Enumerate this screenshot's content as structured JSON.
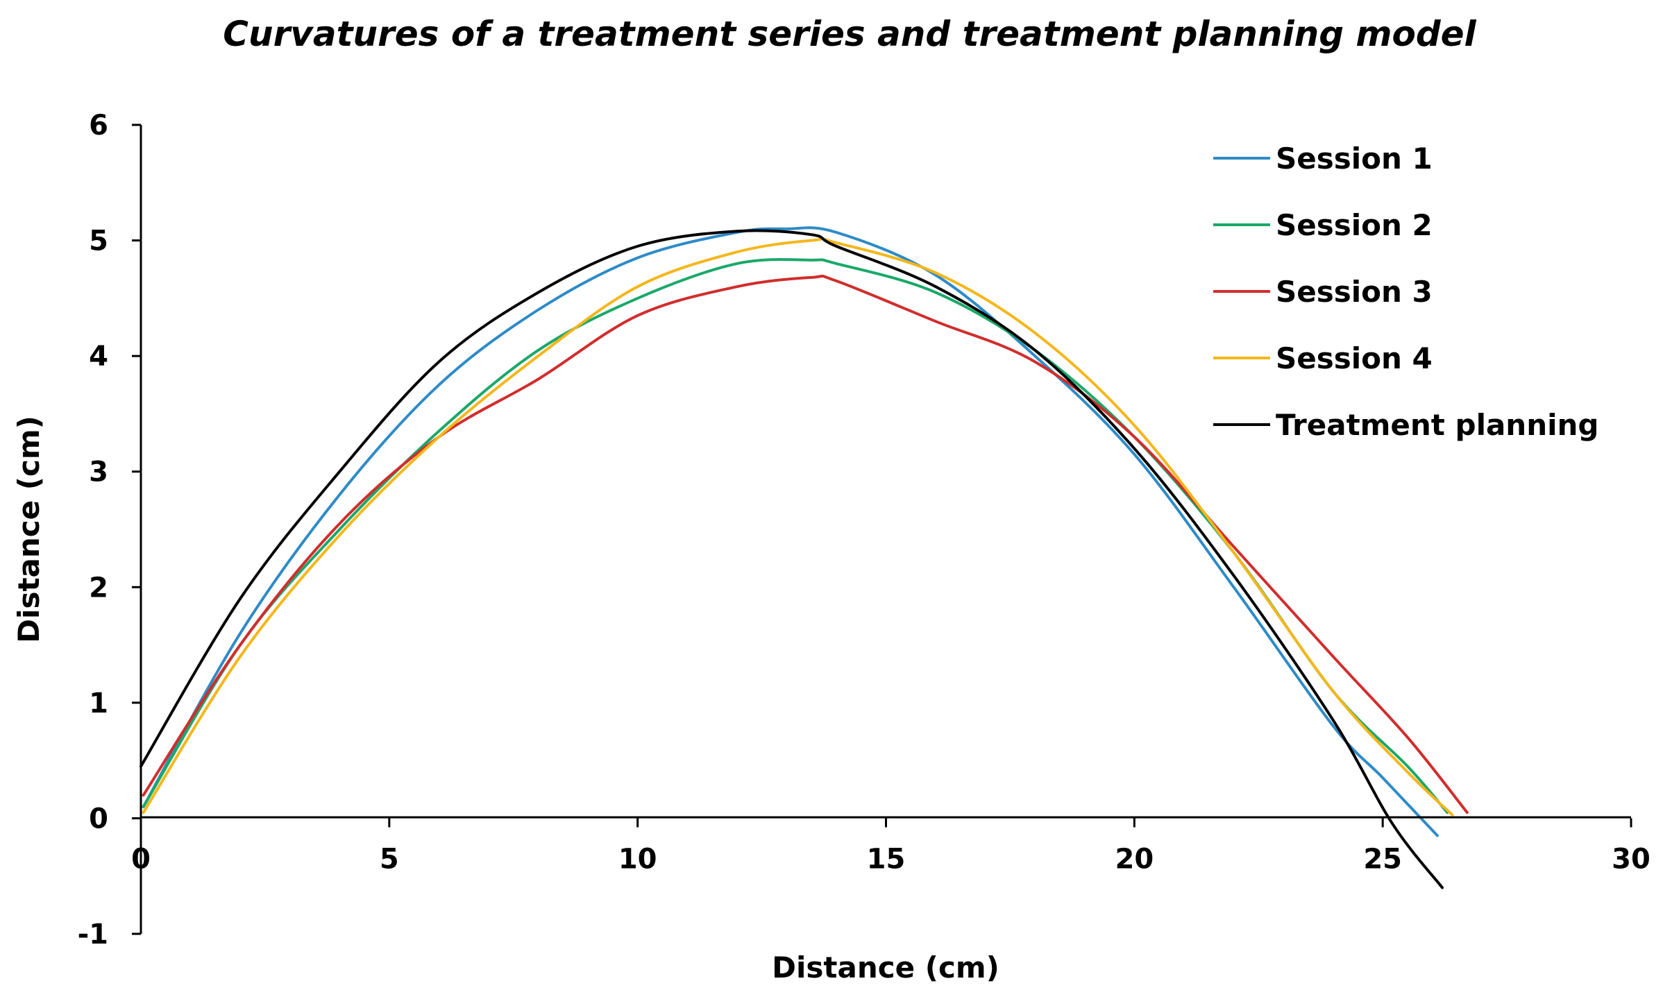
{
  "chart_data": {
    "type": "line",
    "title": "Curvatures of a treatment series and treatment planning model",
    "xlabel": "Distance (cm)",
    "ylabel": "Distance (cm)",
    "xlim": [
      0,
      30
    ],
    "ylim": [
      -1,
      6
    ],
    "x_ticks": [
      0,
      5,
      10,
      15,
      20,
      25,
      30
    ],
    "x_tick_labels": [
      "0",
      "5",
      "10",
      "15",
      "20",
      "25",
      "30"
    ],
    "y_ticks": [
      -1,
      0,
      1,
      2,
      3,
      4,
      5,
      6
    ],
    "y_tick_labels": [
      "-1",
      "0",
      "1",
      "2",
      "3",
      "4",
      "5",
      "6"
    ],
    "grid": false,
    "legend_position": "top-right",
    "series": [
      {
        "name": "Session 1",
        "color": "#2E8BC7",
        "x": [
          0.05,
          2,
          4,
          6,
          8,
          10,
          12,
          13,
          14,
          16,
          18,
          20,
          22,
          24,
          25,
          26.1
        ],
        "y": [
          0.1,
          1.6,
          2.8,
          3.75,
          4.4,
          4.85,
          5.07,
          5.1,
          5.07,
          4.7,
          4.0,
          3.15,
          2.0,
          0.8,
          0.35,
          -0.15
        ]
      },
      {
        "name": "Session 2",
        "color": "#1BA86A",
        "x": [
          0.05,
          2,
          4,
          6,
          8,
          10,
          12,
          13.5,
          14,
          16,
          18,
          20,
          22,
          24,
          25.5,
          26.3
        ],
        "y": [
          0.1,
          1.5,
          2.5,
          3.35,
          4.05,
          4.5,
          4.8,
          4.83,
          4.8,
          4.55,
          4.05,
          3.3,
          2.3,
          1.1,
          0.45,
          0.05
        ]
      },
      {
        "name": "Session 3",
        "color": "#D12D2D",
        "x": [
          0.05,
          2,
          4,
          6,
          8,
          10,
          12,
          13.5,
          14,
          16,
          18,
          20,
          22,
          24,
          25.5,
          26.7
        ],
        "y": [
          0.2,
          1.5,
          2.55,
          3.3,
          3.8,
          4.35,
          4.6,
          4.68,
          4.65,
          4.3,
          3.95,
          3.3,
          2.35,
          1.4,
          0.7,
          0.05
        ]
      },
      {
        "name": "Session 4",
        "color": "#F4B71B",
        "x": [
          0.05,
          2,
          4,
          6,
          8,
          10,
          12,
          13.5,
          14,
          16,
          18,
          20,
          22,
          24,
          25.5,
          26.4
        ],
        "y": [
          0.05,
          1.4,
          2.45,
          3.3,
          4.0,
          4.6,
          4.9,
          5.0,
          4.98,
          4.72,
          4.2,
          3.4,
          2.3,
          1.1,
          0.4,
          0.03
        ]
      },
      {
        "name": "Treatment planning",
        "color": "#000000",
        "x": [
          0.0,
          2,
          4,
          6,
          8,
          10,
          12,
          13.5,
          14,
          16,
          18,
          20,
          22,
          24,
          25.2,
          26.2
        ],
        "y": [
          0.45,
          1.9,
          3.0,
          3.95,
          4.55,
          4.95,
          5.08,
          5.05,
          4.95,
          4.6,
          4.05,
          3.2,
          2.1,
          0.85,
          -0.05,
          -0.6
        ]
      }
    ]
  }
}
